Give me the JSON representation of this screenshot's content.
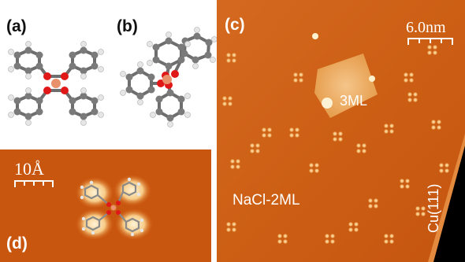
{
  "figure": {
    "panel_a": {
      "label": "(a)"
    },
    "panel_b": {
      "label": "(b)"
    },
    "panel_c": {
      "label": "(c)",
      "scalebar_label": "6.0nm",
      "annotation_3ml": "3ML",
      "annotation_nacl": "NaCl-2ML",
      "annotation_cu": "Cu(111)"
    },
    "panel_d": {
      "label": "(d)",
      "scalebar_label": "10Å"
    }
  },
  "colors": {
    "stm_dark": "#c04a00",
    "stm_mid": "#d2661a",
    "stm_bright": "#f6cf8c",
    "carbon": "#7a7a7a",
    "hydrogen": "#e6e6e6",
    "oxygen": "#e01818",
    "metal": "#e8916a"
  }
}
